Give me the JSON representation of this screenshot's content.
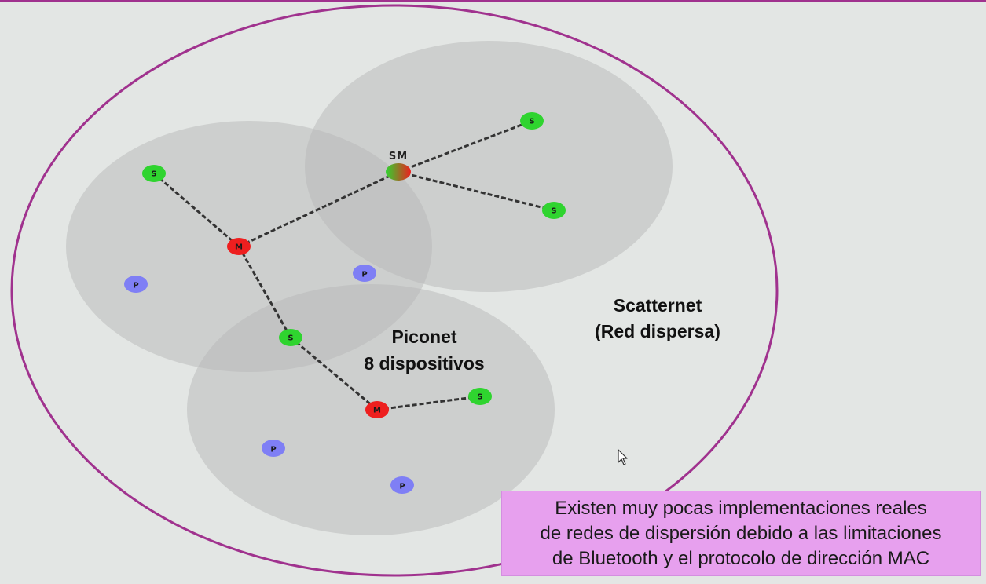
{
  "labels": {
    "scatternet_line1": "Scatternet",
    "scatternet_line2": "(Red dispersa)",
    "piconet_line1": "Piconet",
    "piconet_line2": "8 dispositivos",
    "sm_label": "SM"
  },
  "node_letters": {
    "slave": "S",
    "master": "M",
    "parked": "P"
  },
  "note": {
    "lines": [
      "Existen muy pocas implementaciones reales",
      "de redes de dispersión debido a las limitaciones",
      "de Bluetooth y el protocolo de dirección MAC"
    ]
  },
  "colors": {
    "scatternet_ellipse": "#a0328e",
    "piconet_fill": "#b7b7b7",
    "slave": "#2fd42f",
    "master": "#ee1f1f",
    "parked": "#7f7ff5",
    "note_background": "#e7a0ee"
  }
}
